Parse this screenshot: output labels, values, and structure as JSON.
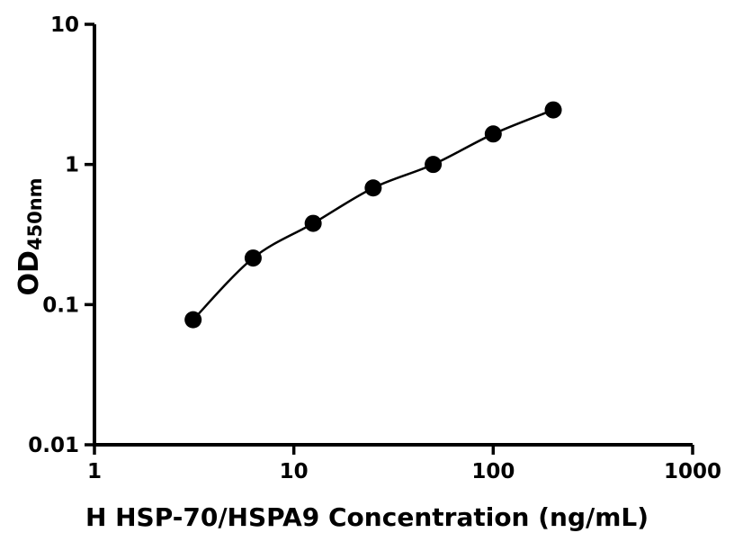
{
  "chart_data": {
    "type": "scatter",
    "title": "",
    "xlabel": "H HSP-70/HSPA9 Concentration (ng/mL)",
    "ylabel_main": "OD",
    "ylabel_sub": "450nm",
    "x_scale": "log",
    "y_scale": "log",
    "xlim": [
      1,
      1000
    ],
    "ylim": [
      0.01,
      10
    ],
    "x_ticks": [
      1,
      10,
      100,
      1000
    ],
    "x_tick_labels": [
      "1",
      "10",
      "100",
      "1000"
    ],
    "y_ticks": [
      0.01,
      0.1,
      1,
      10
    ],
    "y_tick_labels": [
      "0.01",
      "0.1",
      "1",
      "10"
    ],
    "x": [
      3.125,
      6.25,
      12.5,
      25,
      50,
      100,
      200
    ],
    "y": [
      0.078,
      0.215,
      0.38,
      0.68,
      1.0,
      1.65,
      2.45
    ],
    "grid": false,
    "legend": "none",
    "marker_color": "#000000",
    "line_color": "#000000",
    "axis_color": "#000000",
    "background_color": "#ffffff"
  }
}
